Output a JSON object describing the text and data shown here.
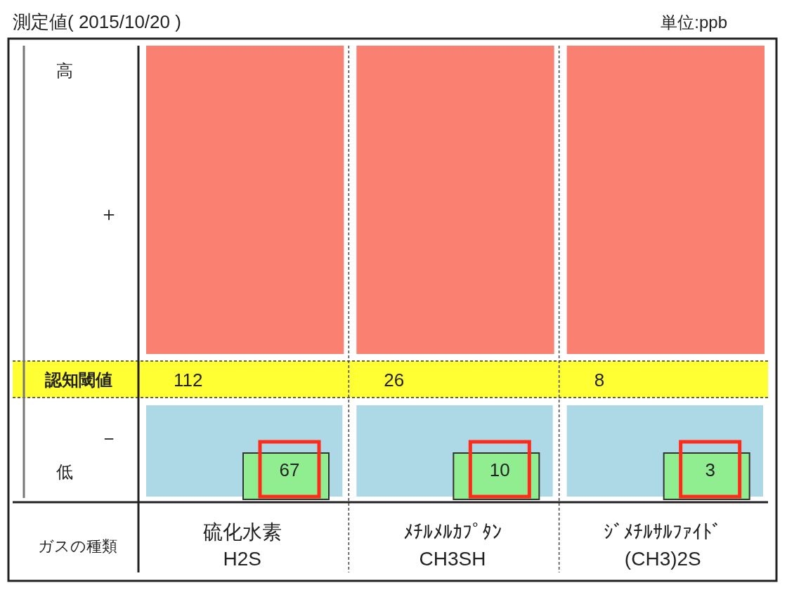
{
  "chart_data": {
    "type": "other",
    "title": "測定値( 2015/10/20 )",
    "subtitle": "単位:ppb",
    "xlabel": "ガスの種類",
    "categories": [
      "硫化水素\nH2S",
      "ﾒﾁﾙﾒﾙｶﾌﾟﾀﾝ\nCH3SH",
      "ｼﾞﾒﾁﾙｻﾙﾌｧｲﾄﾞ\n(CH3)2S"
    ],
    "series": [
      {
        "name": "認知閾値",
        "color": "#ffff33",
        "values": [
          112,
          26,
          8
        ]
      },
      {
        "color": "#90ee90",
        "values": [
          67,
          10,
          3
        ]
      }
    ],
    "data_labels": true,
    "annotations": [
      "高",
      "＋",
      "－",
      "低"
    ]
  }
}
